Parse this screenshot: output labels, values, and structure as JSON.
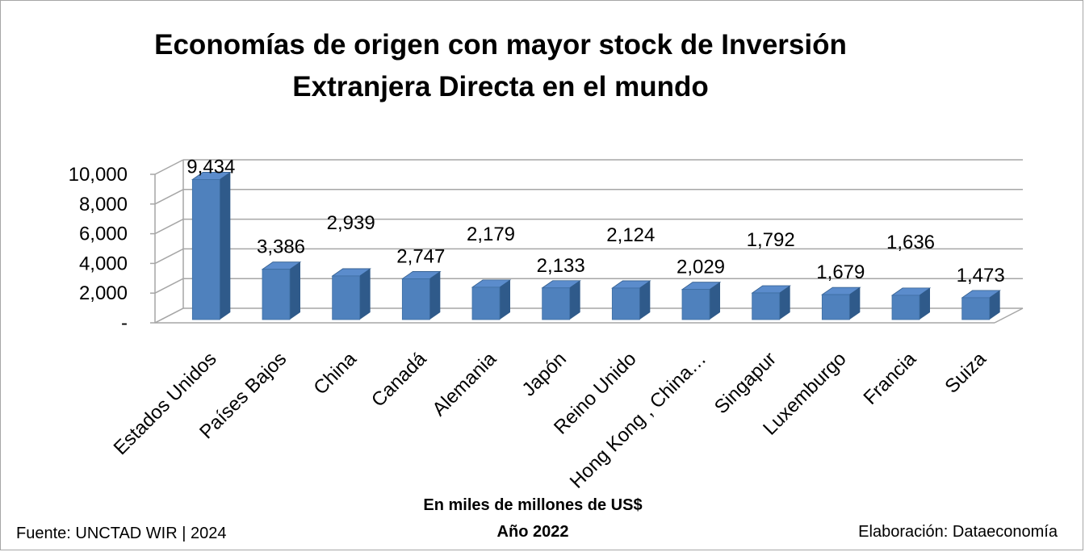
{
  "title_line1": "Economías de origen con mayor stock de Inversión",
  "title_line2": "Extranjera Directa en el mundo",
  "unit_label": "En miles de millones de US$",
  "year_label": "Año 2022",
  "source": "Fuente: UNCTAD WIR | 2024",
  "credit": "Elaboración: Dataeconomía",
  "chart_data": {
    "type": "bar",
    "title": "Economías de origen con mayor stock de Inversión Extranjera Directa en el mundo",
    "xlabel": "",
    "ylabel": "",
    "categories": [
      "Estados Unidos",
      "Países Bajos",
      "China",
      "Canadá",
      "Alemania",
      "Japón",
      "Reino Unido",
      "Hong Kong , China…",
      "Singapur",
      "Luxemburgo",
      "Francia",
      "Suiza"
    ],
    "values": [
      9434,
      3386,
      2939,
      2747,
      2179,
      2133,
      2124,
      2029,
      1792,
      1679,
      1636,
      1473
    ],
    "value_labels": [
      "9,434",
      "3,386",
      "2,939",
      "2,747",
      "2,179",
      "2,133",
      "2,124",
      "2,029",
      "1,792",
      "1,679",
      "1,636",
      "1,473"
    ],
    "yticks": [
      "-",
      "2,000",
      "4,000",
      "6,000",
      "8,000",
      "10,000"
    ],
    "ylim": [
      0,
      10000
    ],
    "grid": true,
    "legend": "none",
    "bar_color": "#4f81bd"
  }
}
